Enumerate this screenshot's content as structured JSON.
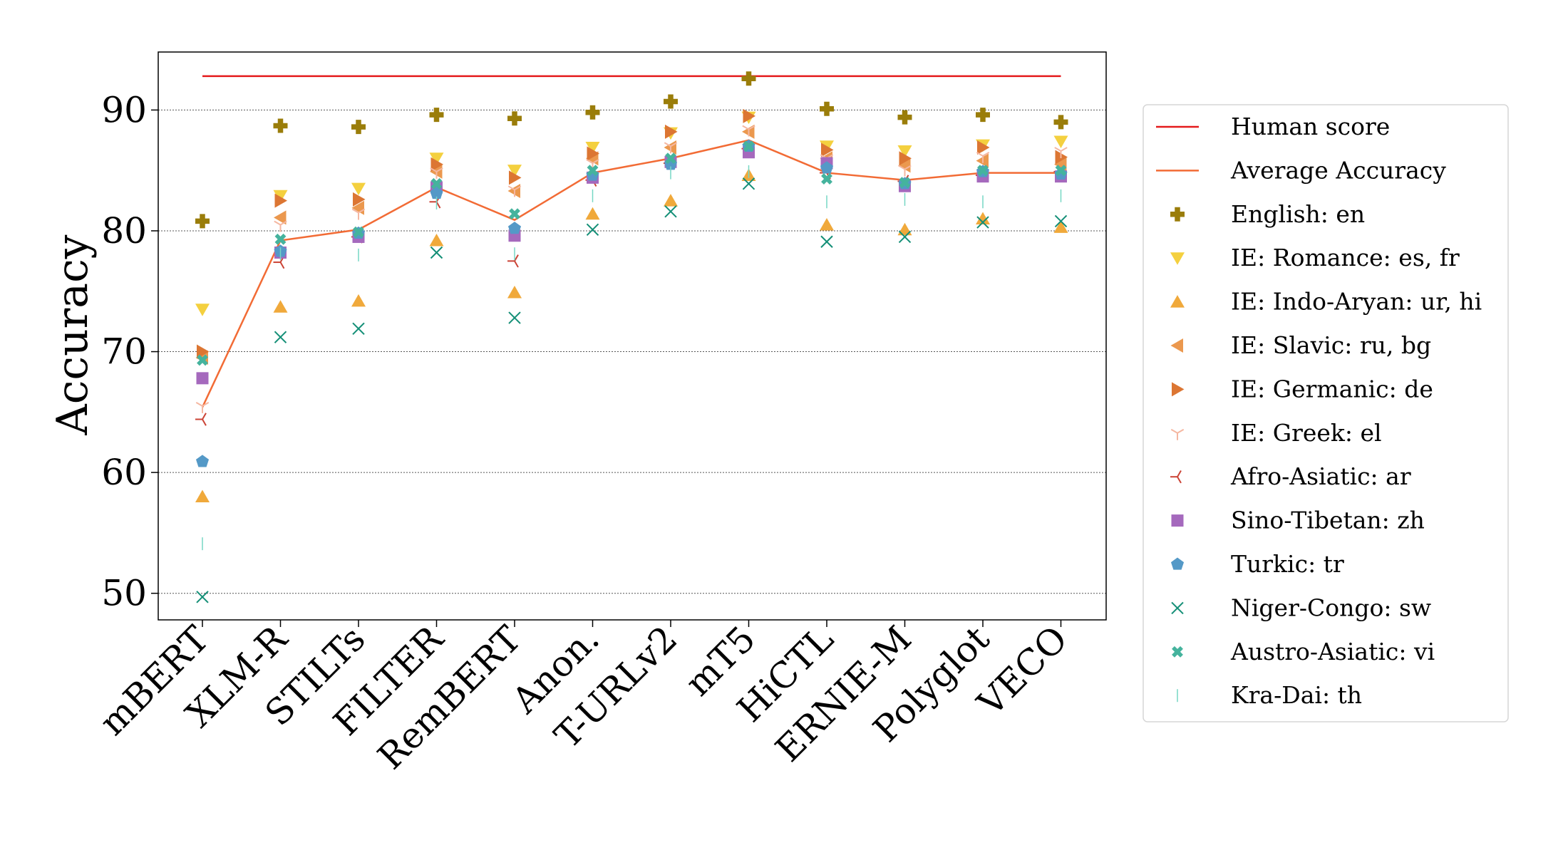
{
  "chart_data": {
    "type": "scatter",
    "ylabel": "Accuracy",
    "xlabel": "",
    "title": "",
    "ylim": [
      47.8,
      94.8
    ],
    "yticks": [
      50,
      60,
      70,
      80,
      90
    ],
    "grid": "horizontal-dotted",
    "legend_position": "outside-right",
    "categories": [
      "mBERT",
      "XLM-R",
      "STILTs",
      "FILTER",
      "RemBERT",
      "Anon.",
      "T-URLv2",
      "mT5",
      "HiCTL",
      "ERNIE-M",
      "Polyglot",
      "VECO"
    ],
    "lines": [
      {
        "name": "Human score",
        "color": "#e41a1c",
        "values": [
          92.8,
          92.8,
          92.8,
          92.8,
          92.8,
          92.8,
          92.8,
          92.8,
          92.8,
          92.8,
          92.8,
          92.8
        ]
      },
      {
        "name": "Average Accuracy",
        "color": "#f26b35",
        "values": [
          65.4,
          79.2,
          80.1,
          83.6,
          80.9,
          84.8,
          86.0,
          87.5,
          84.8,
          84.2,
          84.8,
          84.8
        ]
      }
    ],
    "series": [
      {
        "name": "English: en",
        "marker": "plus",
        "color": "#9a7d0a",
        "values": [
          80.8,
          88.7,
          88.6,
          89.6,
          89.3,
          89.8,
          90.7,
          92.6,
          90.1,
          89.4,
          89.6,
          89.0
        ]
      },
      {
        "name": "IE: Romance: es, fr",
        "marker": "tri-down",
        "color": "#f4d03f",
        "values": [
          73.5,
          82.9,
          83.5,
          86.0,
          85.0,
          86.9,
          88.1,
          89.4,
          87.0,
          86.6,
          87.1,
          87.4
        ]
      },
      {
        "name": "IE: Indo-Aryan: ur, hi",
        "marker": "tri-up",
        "color": "#f0a93b",
        "values": [
          58.0,
          73.7,
          74.2,
          79.2,
          74.9,
          81.4,
          82.5,
          84.6,
          80.5,
          80.1,
          81.0,
          80.3
        ]
      },
      {
        "name": "IE: Slavic: ru, bg",
        "marker": "tri-left",
        "color": "#eb984e",
        "values": [
          69.5,
          81.1,
          81.9,
          84.9,
          83.3,
          86.0,
          86.9,
          88.2,
          86.0,
          85.4,
          85.8,
          85.5
        ]
      },
      {
        "name": "IE: Germanic: de",
        "marker": "tri-right",
        "color": "#dc7633",
        "values": [
          70.0,
          82.5,
          82.6,
          85.5,
          84.4,
          86.4,
          88.2,
          89.5,
          86.7,
          86.0,
          86.9,
          86.1
        ]
      },
      {
        "name": "IE: Greek: el",
        "marker": "y",
        "color": "#f5b7a1",
        "values": [
          65.5,
          80.5,
          81.5,
          84.9,
          83.4,
          85.6,
          87.0,
          88.4,
          86.0,
          85.1,
          86.2,
          86.6
        ]
      },
      {
        "name": "Afro-Asiatic: ar",
        "marker": "lambda",
        "color": "#cb4335",
        "values": [
          64.4,
          77.4,
          79.5,
          82.4,
          77.5,
          84.2,
          85.6,
          86.8,
          84.8,
          84.1,
          84.6,
          84.9
        ]
      },
      {
        "name": "Sino-Tibetan: zh",
        "marker": "square",
        "color": "#a569bd",
        "values": [
          67.8,
          78.2,
          79.5,
          83.6,
          79.6,
          84.4,
          85.7,
          86.5,
          85.6,
          83.7,
          84.5,
          84.5
        ]
      },
      {
        "name": "Turkic: tr",
        "marker": "pentagon",
        "color": "#5499c7",
        "values": [
          60.9,
          78.3,
          79.8,
          83.1,
          80.2,
          84.6,
          85.5,
          87.0,
          85.2,
          83.9,
          84.9,
          84.7
        ]
      },
      {
        "name": "Niger-Congo: sw",
        "marker": "x",
        "color": "#148f77",
        "values": [
          49.7,
          71.2,
          71.9,
          78.2,
          72.8,
          80.1,
          81.6,
          83.9,
          79.1,
          79.5,
          80.7,
          80.8
        ]
      },
      {
        "name": "Austro-Asiatic: vi",
        "marker": "xfilled",
        "color": "#45b39d",
        "values": [
          69.3,
          79.3,
          79.9,
          83.9,
          81.4,
          85.0,
          86.0,
          87.0,
          84.3,
          84.0,
          85.0,
          85.0
        ]
      },
      {
        "name": "Kra-Dai: th",
        "marker": "vline",
        "color": "#76d7c4",
        "values": [
          54.1,
          78.1,
          78.0,
          82.3,
          78.1,
          82.9,
          84.8,
          84.9,
          82.4,
          82.6,
          82.4,
          82.9
        ]
      }
    ]
  }
}
